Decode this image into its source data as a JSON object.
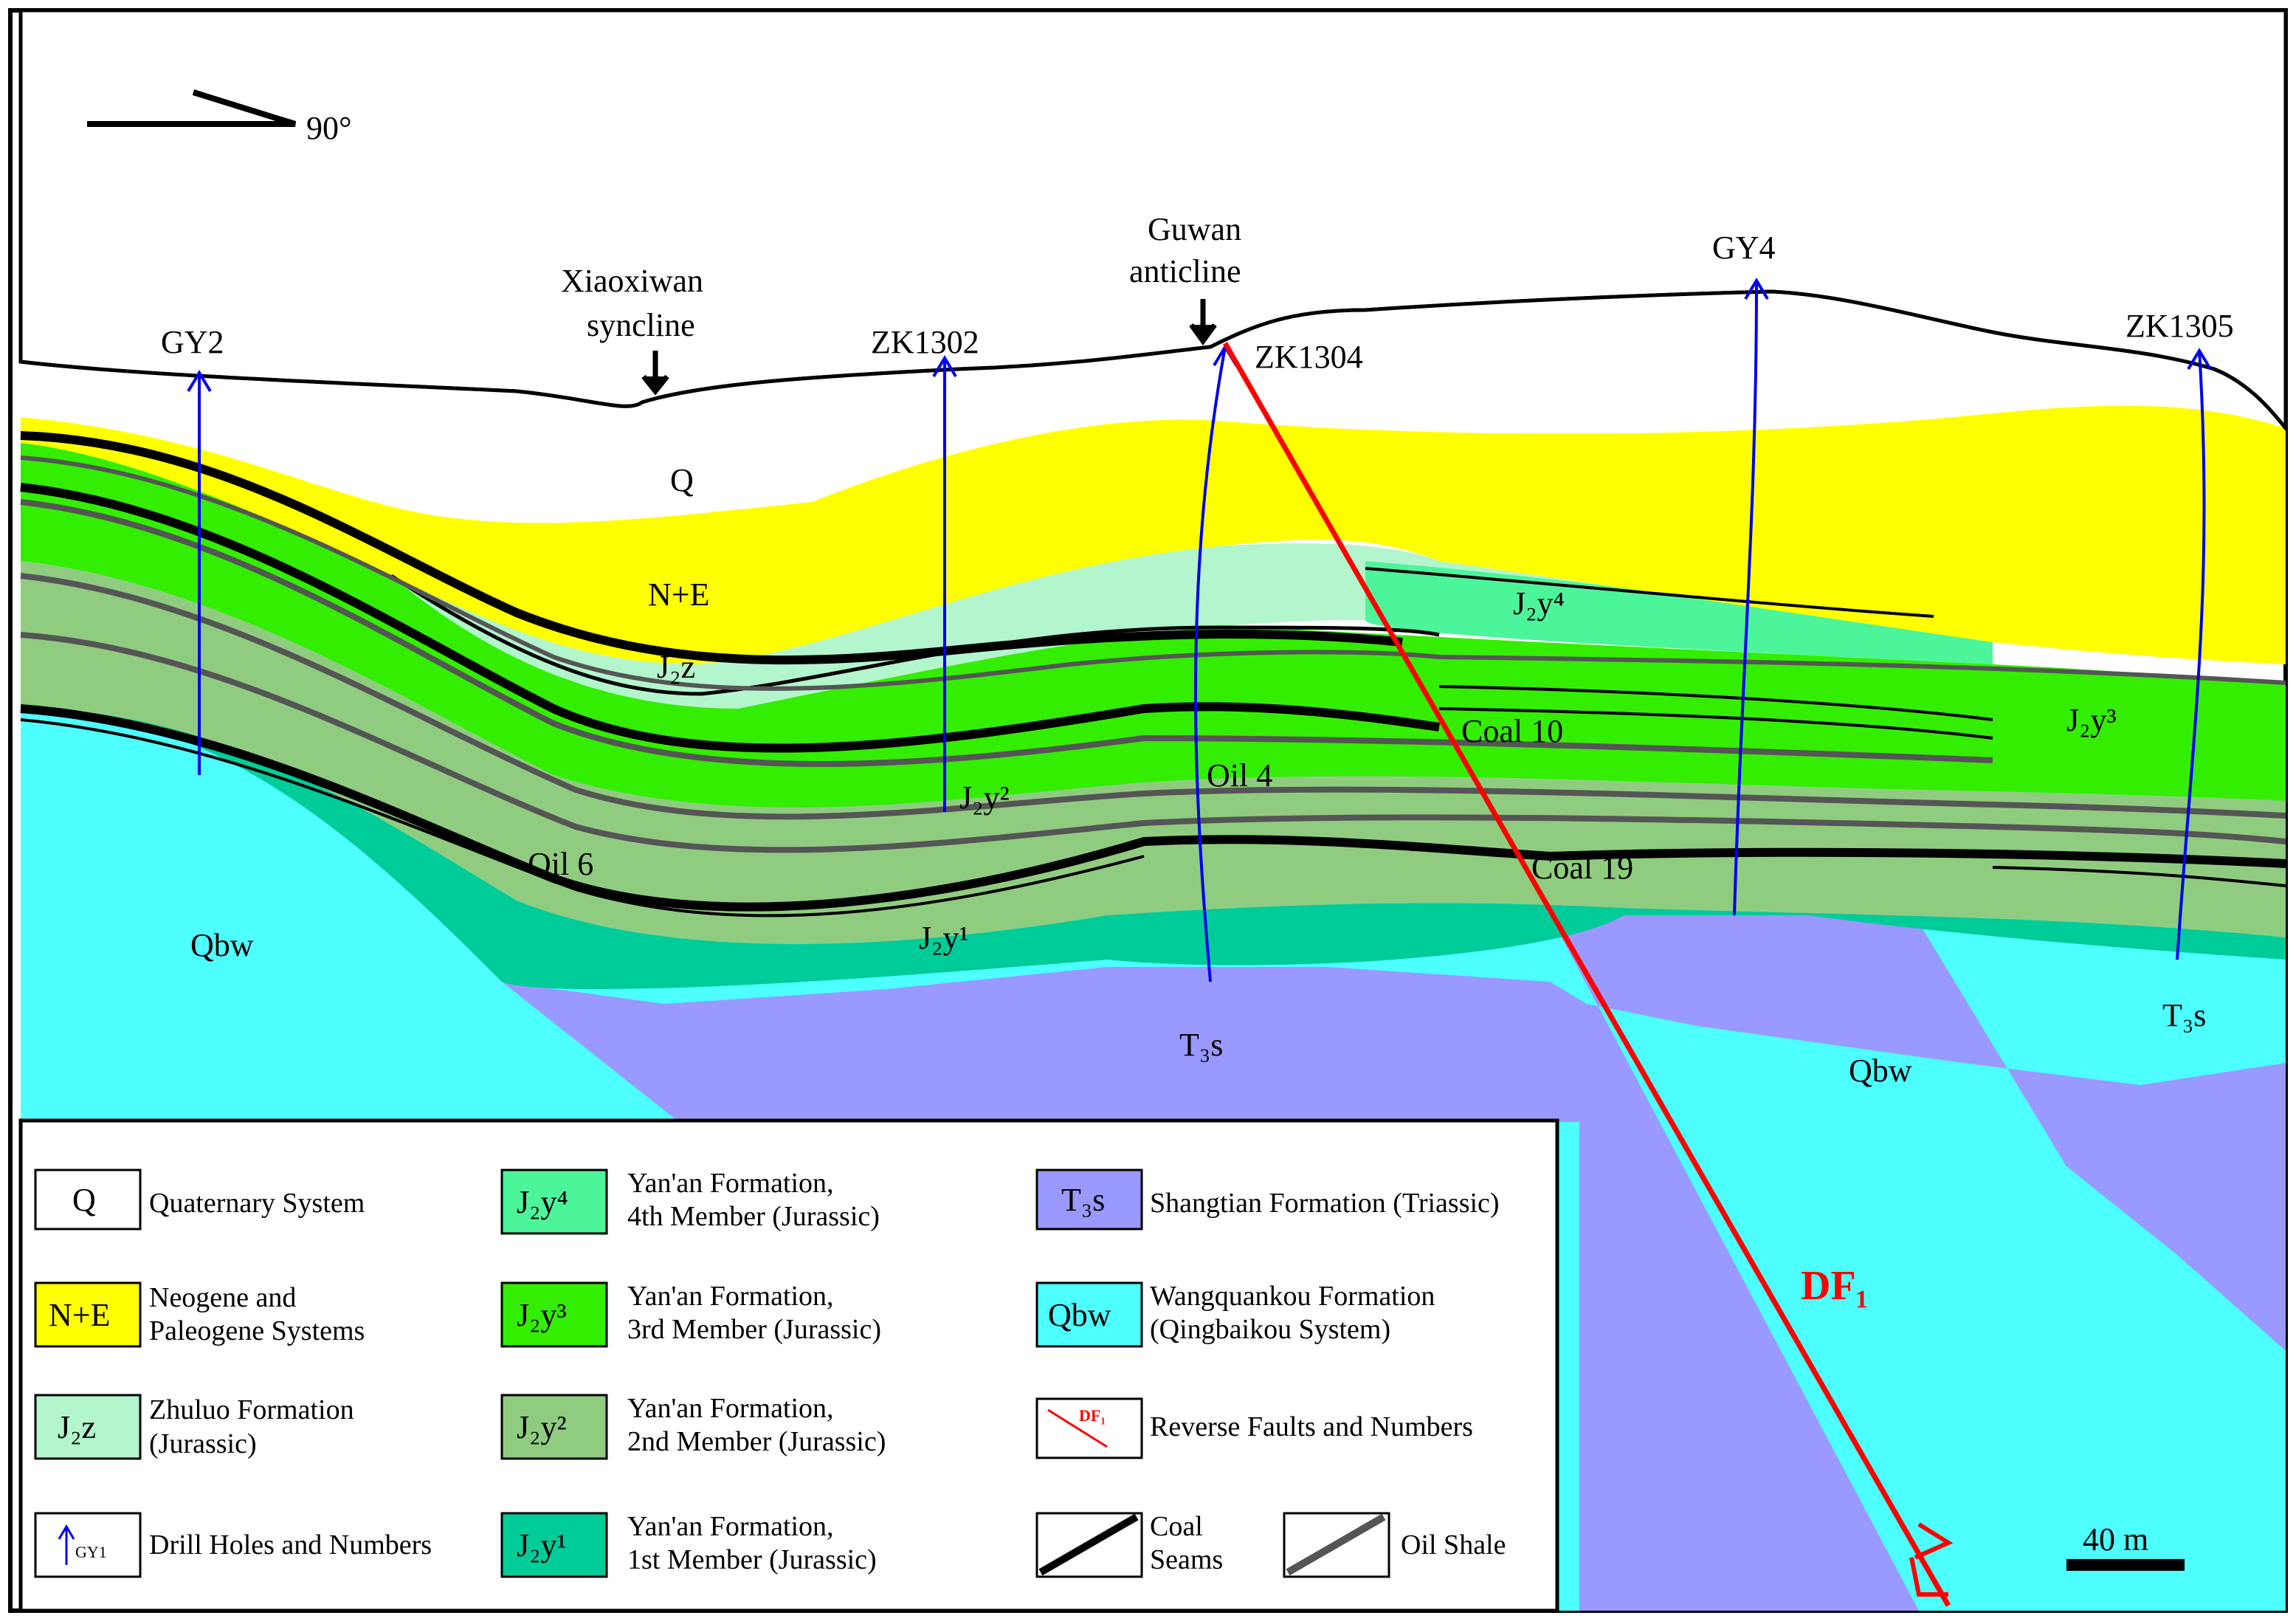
{
  "orientation": {
    "label": "90°"
  },
  "top_labels": {
    "xiaoxiwan_1": "Xiaoxiwan",
    "xiaoxiwan_2": "syncline",
    "guwan_1": "Guwan",
    "guwan_2": "anticline"
  },
  "drill_holes": [
    "GY2",
    "ZK1302",
    "ZK1304",
    "GY4",
    "ZK1305"
  ],
  "unit_labels": {
    "q": "Q",
    "ne": "N+E",
    "j2z": "J₂z",
    "j2y4": "J₂y⁴",
    "j2y3": "J₂y³",
    "j2y2": "J₂y²",
    "j2y1": "J₂y¹",
    "oil4": "Oil 4",
    "oil6": "Oil 6",
    "coal10": "Coal 10",
    "coal19": "Coal 19",
    "qbw_left": "Qbw",
    "qbw_right": "Qbw",
    "t3s_mid": "T₃s",
    "t3s_right": "T₃s"
  },
  "fault": {
    "label": "DF₁",
    "color": "#ff0000"
  },
  "scale_bar": {
    "label": "40 m"
  },
  "colors": {
    "q": "#ffffff",
    "ne": "#ffff00",
    "j2z": "#b3f5cc",
    "j2y4": "#4df59a",
    "j2y3": "#33ee00",
    "j2y2": "#8fcc80",
    "j2y1": "#00cc99",
    "t3s": "#9999ff",
    "qbw": "#4dffff",
    "drill": "#0000ee"
  },
  "legend": [
    {
      "code": "Q",
      "text1": "Quaternary System",
      "text2": ""
    },
    {
      "code": "N+E",
      "text1": "Neogene and",
      "text2": "Paleogene  Systems"
    },
    {
      "code": "J₂z",
      "text1": "Zhuluo Formation",
      "text2": "(Jurassic)"
    },
    {
      "code": "",
      "text1": "Drill Holes and Numbers",
      "text2": "",
      "icon_label": "GY1"
    },
    {
      "code": "J₂y⁴",
      "text1": "Yan'an Formation,",
      "text2": "4th Member (Jurassic)"
    },
    {
      "code": "J₂y³",
      "text1": "Yan'an Formation,",
      "text2": "3rd Member (Jurassic)"
    },
    {
      "code": "J₂y²",
      "text1": "Yan'an Formation,",
      "text2": "2nd Member (Jurassic)"
    },
    {
      "code": "J₂y¹",
      "text1": "Yan'an Formation,",
      "text2": "1st Member (Jurassic)"
    },
    {
      "code": "T₃s",
      "text1": "Shangtian Formation (Triassic)",
      "text2": ""
    },
    {
      "code": "Qbw",
      "text1": "Wangquankou Formation",
      "text2": "(Qingbaikou System)"
    },
    {
      "code": "",
      "text1": "Reverse Faults and Numbers",
      "text2": "",
      "icon_label": "DF₁"
    },
    {
      "code": "",
      "text1": "Coal",
      "text2": "Seams"
    },
    {
      "code": "",
      "text1": "Oil Shale",
      "text2": ""
    }
  ]
}
